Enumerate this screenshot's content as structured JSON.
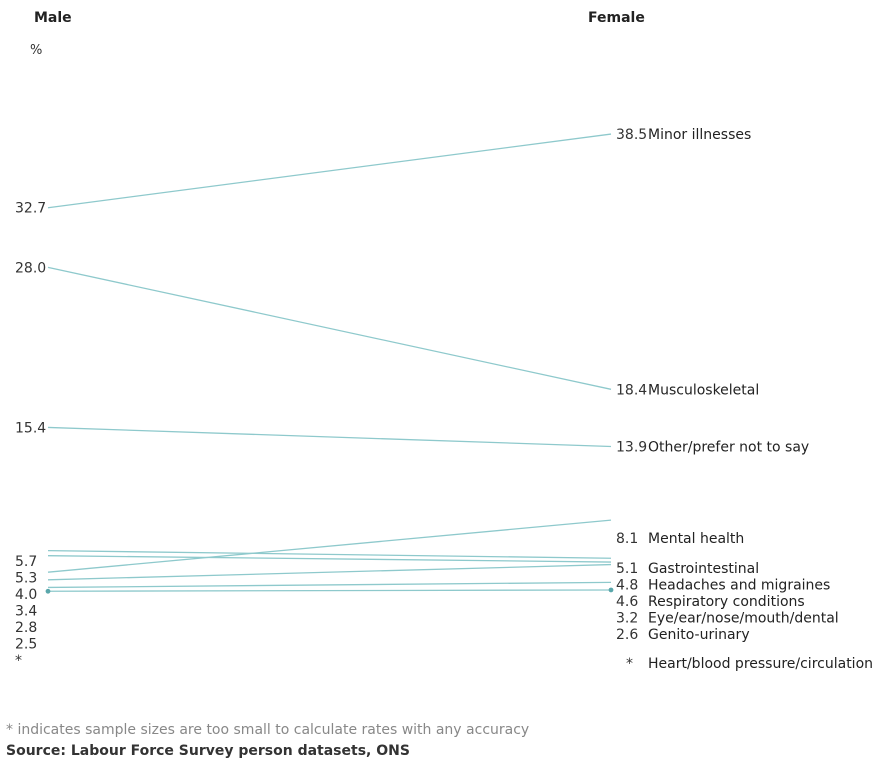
{
  "chart_data": {
    "type": "slope",
    "left_header": "Male",
    "right_header": "Female",
    "unit": "%",
    "line_color": "#8ec9cc",
    "categories": [
      {
        "name": "Minor illnesses",
        "male": 32.7,
        "female": 38.5,
        "male_label": "32.7",
        "female_label": "38.5"
      },
      {
        "name": "Musculoskeletal",
        "male": 28.0,
        "female": 18.4,
        "male_label": "28.0",
        "female_label": "18.4"
      },
      {
        "name": "Other/prefer not to say",
        "male": 15.4,
        "female": 13.9,
        "male_label": "15.4",
        "female_label": "13.9"
      },
      {
        "name": "Mental health",
        "male": 4.0,
        "female": 8.1,
        "male_label": "4.0",
        "female_label": "8.1"
      },
      {
        "name": "Gastrointestinal",
        "male": 5.7,
        "female": 5.1,
        "male_label": "5.7",
        "female_label": "5.1"
      },
      {
        "name": "Headaches and migraines",
        "male": 5.3,
        "female": 4.8,
        "male_label": "5.3",
        "female_label": "4.8"
      },
      {
        "name": "Respiratory conditions",
        "male": 3.4,
        "female": 4.6,
        "male_label": "3.4",
        "female_label": "4.6"
      },
      {
        "name": "Eye/ear/nose/mouth/dental",
        "male": 2.8,
        "female": 3.2,
        "male_label": "2.8",
        "female_label": "3.2"
      },
      {
        "name": "Genito-urinary",
        "male": 2.5,
        "female": 2.6,
        "male_label": "2.5",
        "female_label": "2.6"
      },
      {
        "name": "Heart/blood pressure/circulation",
        "male": null,
        "female": null,
        "male_label": "*",
        "female_label": "*"
      }
    ]
  },
  "footnote": "* indicates sample sizes are too small to calculate rates with any accuracy",
  "source": "Source: Labour Force Survey person datasets, ONS"
}
